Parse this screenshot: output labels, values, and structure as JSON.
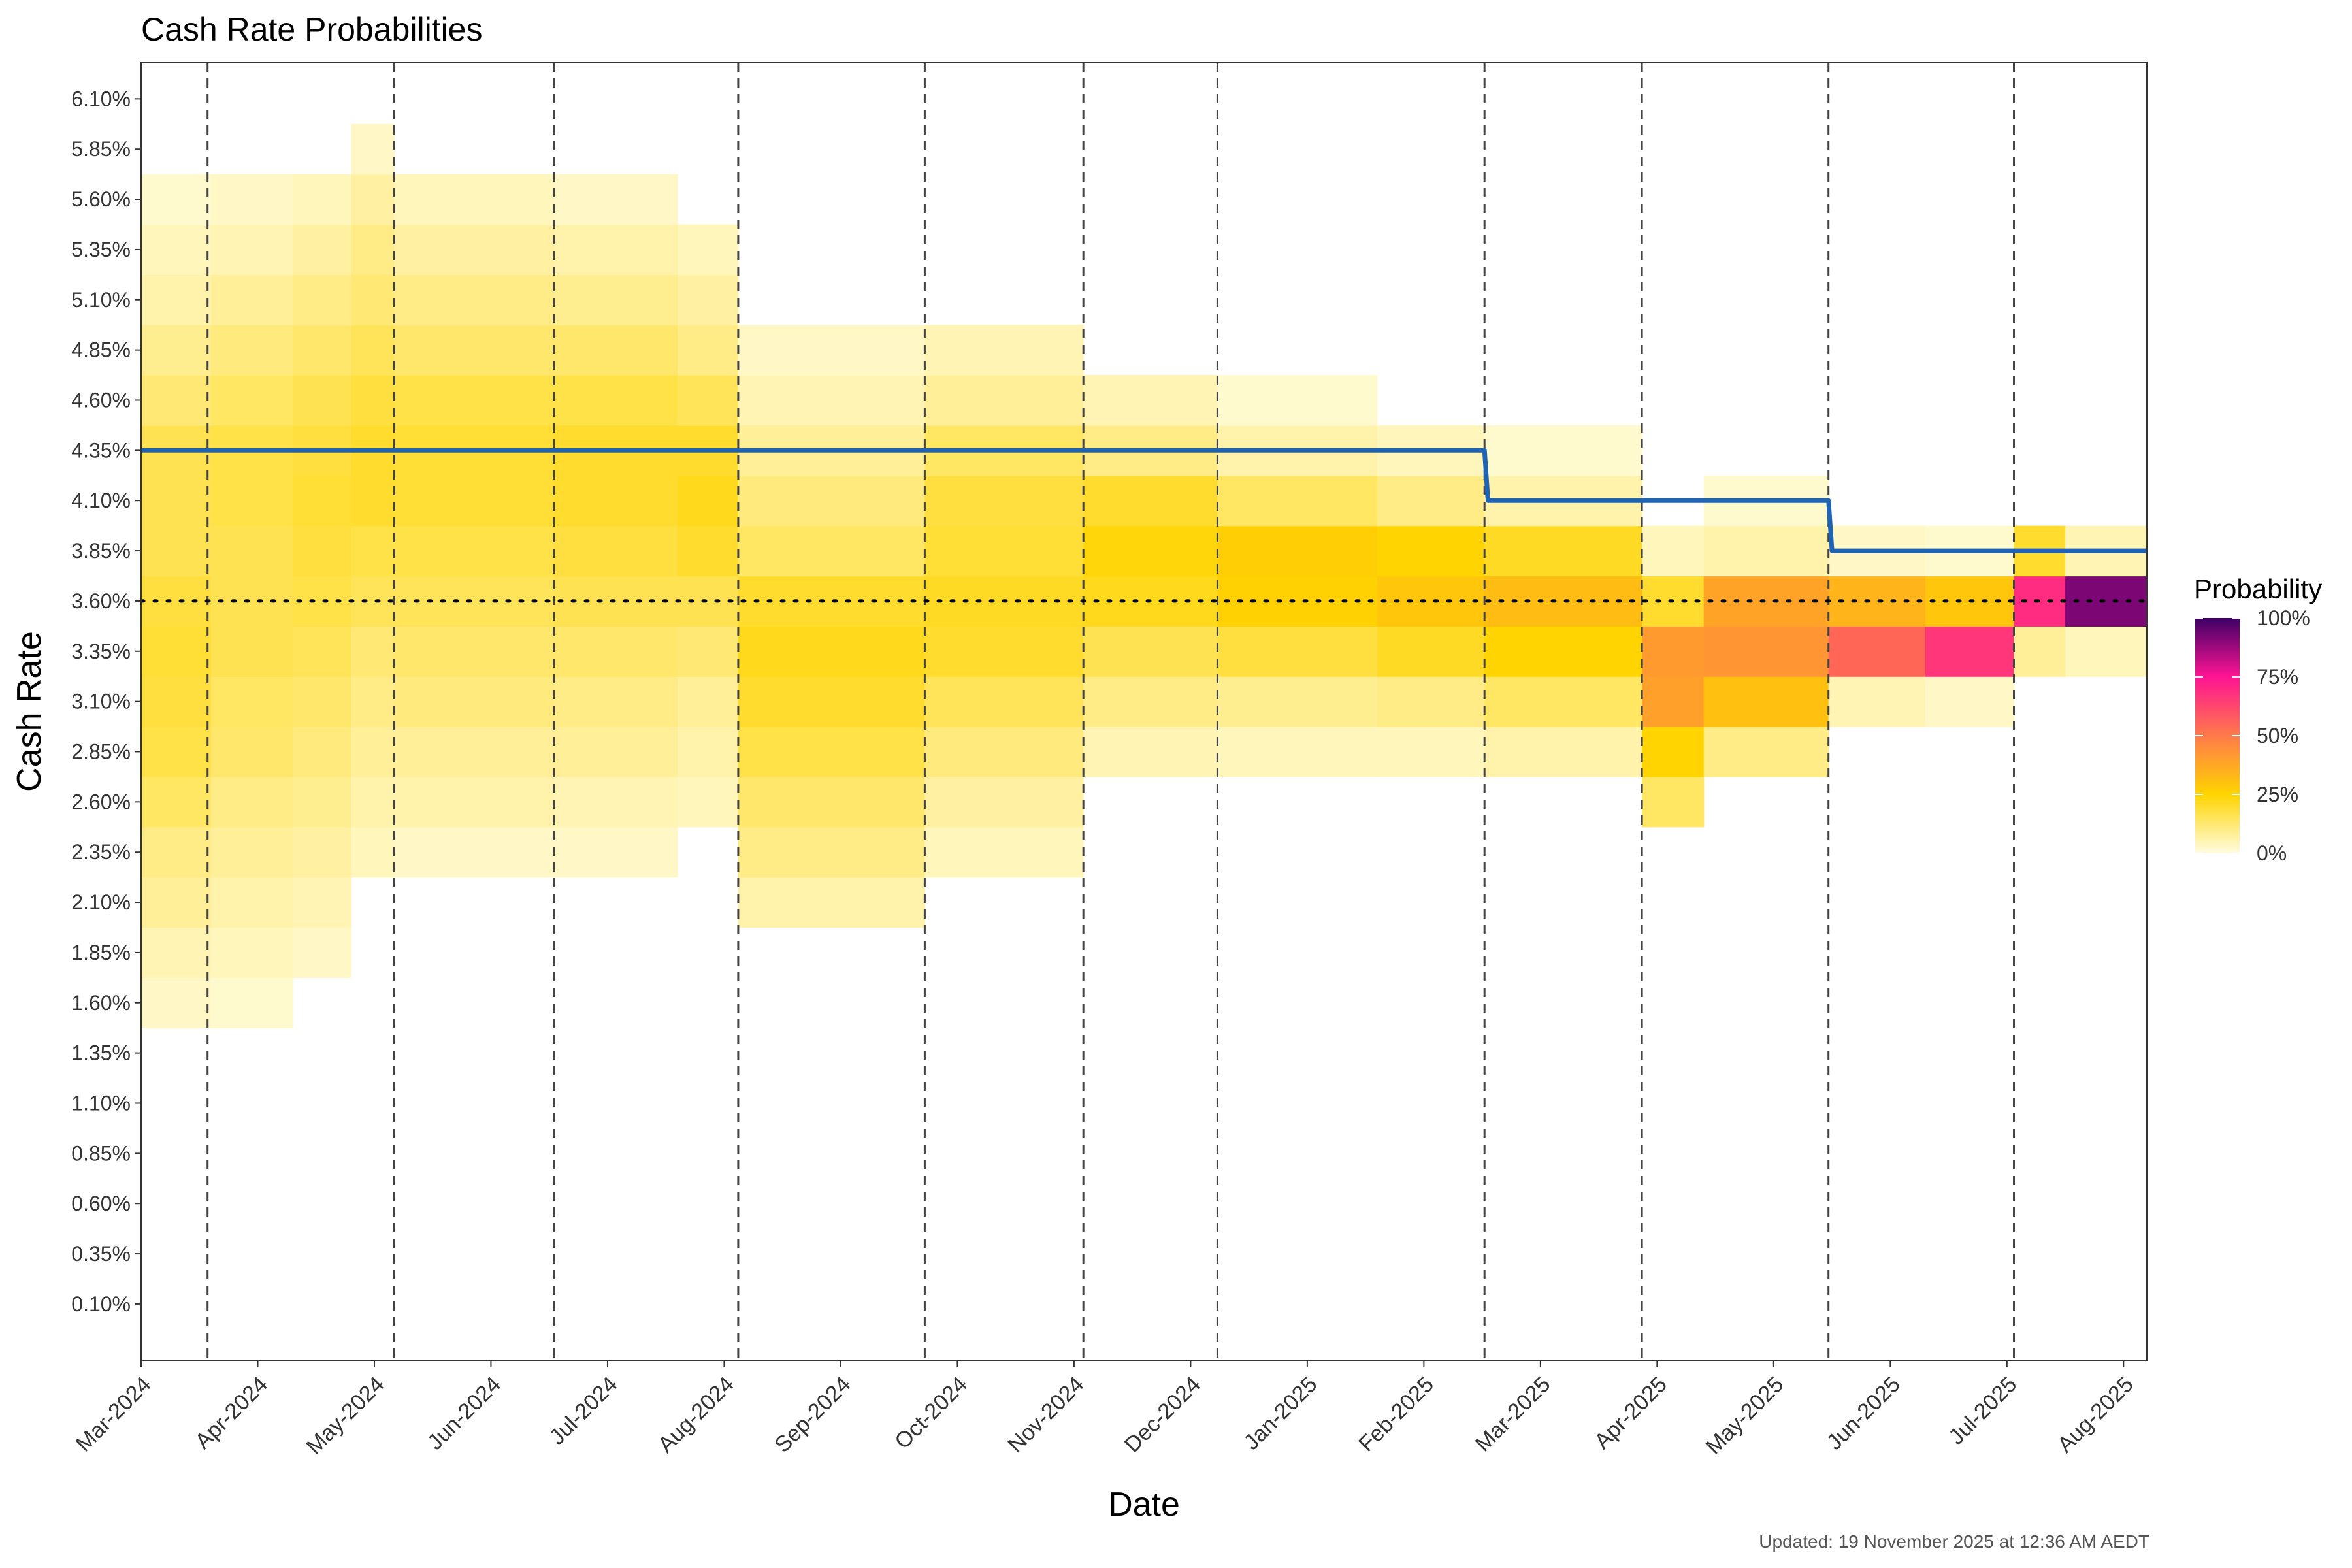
{
  "colors": {
    "panel_border": "#333333",
    "rate_line": "#1e63b4",
    "reference_line": "#000000",
    "meeting_lines": "#444444",
    "scale_stops": [
      "#fffce0",
      "#ffd400",
      "#ff8c3a",
      "#ff1493",
      "#3d0066"
    ]
  },
  "chart_data": {
    "type": "heatmap",
    "title": "Cash Rate Probabilities",
    "xlabel": "Date",
    "ylabel": "Cash Rate",
    "x_range_months": [
      0,
      17.2
    ],
    "y_range": [
      -0.18,
      6.28
    ],
    "x_tick_labels": [
      "Mar-2024",
      "Apr-2024",
      "May-2024",
      "Jun-2024",
      "Jul-2024",
      "Aug-2024",
      "Sep-2024",
      "Oct-2024",
      "Nov-2024",
      "Dec-2024",
      "Jan-2025",
      "Feb-2025",
      "Mar-2025",
      "Apr-2025",
      "May-2025",
      "Jun-2025",
      "Jul-2025",
      "Aug-2025"
    ],
    "y_tick_labels": [
      "0.10%",
      "0.35%",
      "0.60%",
      "0.85%",
      "1.10%",
      "1.35%",
      "1.60%",
      "1.85%",
      "2.10%",
      "2.35%",
      "2.60%",
      "2.85%",
      "3.10%",
      "3.35%",
      "3.60%",
      "3.85%",
      "4.10%",
      "4.35%",
      "4.60%",
      "4.85%",
      "5.10%",
      "5.35%",
      "5.60%",
      "5.85%",
      "6.10%"
    ],
    "y_tick_values": [
      0.1,
      0.35,
      0.6,
      0.85,
      1.1,
      1.35,
      1.6,
      1.85,
      2.1,
      2.35,
      2.6,
      2.85,
      3.1,
      3.35,
      3.6,
      3.85,
      4.1,
      4.35,
      4.6,
      4.85,
      5.1,
      5.35,
      5.6,
      5.85,
      6.1
    ],
    "meeting_dates_months": [
      0.57,
      2.17,
      3.54,
      5.12,
      6.72,
      8.08,
      9.23,
      11.52,
      12.87,
      14.47,
      16.06
    ],
    "reference_rate": 3.6,
    "cash_rate_line": [
      {
        "x": 0.0,
        "y": 4.35
      },
      {
        "x": 11.52,
        "y": 4.35
      },
      {
        "x": 11.55,
        "y": 4.1
      },
      {
        "x": 14.47,
        "y": 4.1
      },
      {
        "x": 14.5,
        "y": 3.85
      },
      {
        "x": 17.2,
        "y": 3.85
      }
    ],
    "probability_scale": {
      "title": "Probability",
      "labels": [
        "100%",
        "75%",
        "50%",
        "25%",
        "0%"
      ],
      "values": [
        1.0,
        0.75,
        0.5,
        0.25,
        0.0
      ]
    },
    "heatmap_segments": [
      {
        "x": [
          0.0,
          0.6
        ],
        "probs": {
          "1.6": 0.03,
          "1.85": 0.05,
          "2.1": 0.08,
          "2.35": 0.1,
          "2.6": 0.14,
          "2.85": 0.17,
          "3.1": 0.18,
          "3.35": 0.19,
          "3.6": 0.18,
          "3.85": 0.16,
          "4.1": 0.16,
          "4.35": 0.16,
          "4.6": 0.12,
          "4.85": 0.09,
          "5.1": 0.06,
          "5.35": 0.04,
          "5.6": 0.02
        }
      },
      {
        "x": [
          0.6,
          1.3
        ],
        "probs": {
          "1.6": 0.02,
          "1.85": 0.04,
          "2.1": 0.06,
          "2.35": 0.08,
          "2.6": 0.1,
          "2.85": 0.13,
          "3.1": 0.14,
          "3.35": 0.16,
          "3.6": 0.16,
          "3.85": 0.16,
          "4.1": 0.17,
          "4.35": 0.17,
          "4.6": 0.14,
          "4.85": 0.11,
          "5.1": 0.08,
          "5.35": 0.05,
          "5.6": 0.03
        }
      },
      {
        "x": [
          1.3,
          1.8
        ],
        "probs": {
          "1.85": 0.03,
          "2.1": 0.05,
          "2.35": 0.07,
          "2.6": 0.09,
          "2.85": 0.11,
          "3.1": 0.13,
          "3.35": 0.15,
          "3.6": 0.17,
          "3.85": 0.18,
          "4.1": 0.19,
          "4.35": 0.18,
          "4.6": 0.16,
          "4.85": 0.13,
          "5.1": 0.1,
          "5.35": 0.07,
          "5.6": 0.04
        }
      },
      {
        "x": [
          1.8,
          2.17
        ],
        "probs": {
          "2.35": 0.04,
          "2.6": 0.06,
          "2.85": 0.08,
          "3.1": 0.1,
          "3.35": 0.12,
          "3.6": 0.15,
          "3.85": 0.17,
          "4.1": 0.2,
          "4.35": 0.2,
          "4.6": 0.18,
          "4.85": 0.15,
          "5.1": 0.12,
          "5.35": 0.1,
          "5.6": 0.07,
          "5.85": 0.03
        }
      },
      {
        "x": [
          2.17,
          3.54
        ],
        "probs": {
          "2.35": 0.03,
          "2.6": 0.06,
          "2.85": 0.08,
          "3.1": 0.11,
          "3.35": 0.13,
          "3.6": 0.15,
          "3.85": 0.17,
          "4.1": 0.19,
          "4.35": 0.19,
          "4.6": 0.17,
          "4.85": 0.13,
          "5.1": 0.1,
          "5.35": 0.07,
          "5.6": 0.04
        }
      },
      {
        "x": [
          3.54,
          4.6
        ],
        "probs": {
          "2.35": 0.03,
          "2.6": 0.05,
          "2.85": 0.08,
          "3.1": 0.1,
          "3.35": 0.13,
          "3.6": 0.16,
          "3.85": 0.18,
          "4.1": 0.2,
          "4.35": 0.2,
          "4.6": 0.17,
          "4.85": 0.13,
          "5.1": 0.09,
          "5.35": 0.06,
          "5.6": 0.03
        }
      },
      {
        "x": [
          4.6,
          5.12
        ],
        "probs": {
          "2.6": 0.04,
          "2.85": 0.06,
          "3.1": 0.08,
          "3.35": 0.12,
          "3.6": 0.16,
          "3.85": 0.2,
          "4.1": 0.22,
          "4.35": 0.2,
          "4.6": 0.15,
          "4.85": 0.1,
          "5.1": 0.07,
          "5.35": 0.04
        }
      },
      {
        "x": [
          5.12,
          6.72
        ],
        "probs": {
          "2.1": 0.06,
          "2.35": 0.1,
          "2.6": 0.13,
          "2.85": 0.17,
          "3.1": 0.2,
          "3.35": 0.22,
          "3.6": 0.2,
          "3.85": 0.14,
          "4.1": 0.11,
          "4.35": 0.08,
          "4.6": 0.05,
          "4.85": 0.03
        }
      },
      {
        "x": [
          6.72,
          8.08
        ],
        "probs": {
          "2.35": 0.04,
          "2.6": 0.07,
          "2.85": 0.11,
          "3.1": 0.15,
          "3.35": 0.2,
          "3.6": 0.21,
          "3.85": 0.19,
          "4.1": 0.18,
          "4.35": 0.14,
          "4.6": 0.08,
          "4.85": 0.05
        }
      },
      {
        "x": [
          8.08,
          9.23
        ],
        "probs": {
          "2.85": 0.05,
          "3.1": 0.1,
          "3.35": 0.16,
          "3.6": 0.22,
          "3.85": 0.24,
          "4.1": 0.2,
          "4.35": 0.1,
          "4.6": 0.05
        }
      },
      {
        "x": [
          9.23,
          10.6
        ],
        "probs": {
          "2.85": 0.04,
          "3.1": 0.09,
          "3.35": 0.18,
          "3.6": 0.26,
          "3.85": 0.27,
          "4.1": 0.14,
          "4.35": 0.06,
          "4.6": 0.02
        }
      },
      {
        "x": [
          10.6,
          11.52
        ],
        "probs": {
          "2.85": 0.04,
          "3.1": 0.1,
          "3.35": 0.21,
          "3.6": 0.3,
          "3.85": 0.25,
          "4.1": 0.1,
          "4.35": 0.04
        }
      },
      {
        "x": [
          11.52,
          12.87
        ],
        "probs": {
          "2.85": 0.06,
          "3.1": 0.14,
          "3.35": 0.25,
          "3.6": 0.33,
          "3.85": 0.21,
          "4.1": 0.06,
          "4.35": 0.02
        }
      },
      {
        "x": [
          12.87,
          13.4
        ],
        "probs": {
          "2.6": 0.14,
          "2.85": 0.25,
          "3.1": 0.43,
          "3.35": 0.45,
          "3.6": 0.2,
          "3.85": 0.04
        }
      },
      {
        "x": [
          13.4,
          14.47
        ],
        "probs": {
          "2.85": 0.1,
          "3.1": 0.32,
          "3.35": 0.47,
          "3.6": 0.42,
          "3.85": 0.06,
          "4.1": 0.02
        }
      },
      {
        "x": [
          14.47,
          15.3
        ],
        "probs": {
          "3.1": 0.05,
          "3.35": 0.58,
          "3.6": 0.36,
          "3.85": 0.03
        }
      },
      {
        "x": [
          15.3,
          16.06
        ],
        "probs": {
          "3.1": 0.03,
          "3.35": 0.68,
          "3.6": 0.3,
          "3.85": 0.02
        }
      },
      {
        "x": [
          16.06,
          16.5
        ],
        "probs": {
          "3.35": 0.08,
          "3.6": 0.7,
          "3.85": 0.2
        }
      },
      {
        "x": [
          16.5,
          17.2
        ],
        "probs": {
          "3.35": 0.04,
          "3.6": 0.92,
          "3.85": 0.05
        }
      }
    ]
  },
  "footnote": "Updated: 19 November 2025 at 12:36 AM AEDT"
}
